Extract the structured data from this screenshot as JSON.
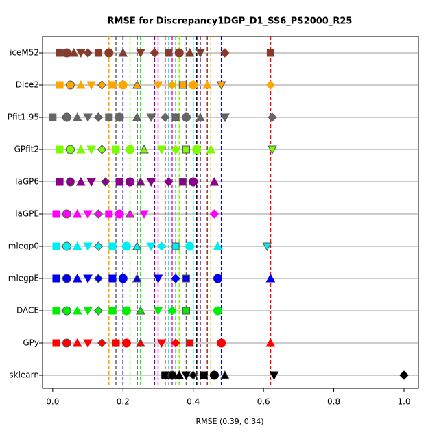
{
  "chart_data": {
    "type": "strip",
    "title": "RMSE for Discrepancy1DGP_D1_SS6_PS2000_R25",
    "x_label": "RMSE (0.39, 0.34)",
    "xlim": [
      -0.029,
      1.041
    ],
    "xticks": [
      {
        "value": 0,
        "label": "0.0"
      },
      {
        "value": 0.2,
        "label": "0.2"
      },
      {
        "value": 0.4,
        "label": "0.4"
      },
      {
        "value": 0.6,
        "label": "0.6"
      },
      {
        "value": 0.8,
        "label": "0.8"
      },
      {
        "value": 1,
        "label": "1.0"
      }
    ],
    "grid": true,
    "series": [
      {
        "name": "iceM52",
        "color": "#8b3a2a",
        "values": [
          0.02,
          0.04,
          0.06,
          0.08,
          0.1,
          0.13,
          0.16,
          0.2,
          0.25,
          0.29,
          0.33,
          0.36,
          0.39,
          0.42,
          0.49,
          0.62
        ],
        "lines": [
          0.2,
          0.44,
          0.62
        ]
      },
      {
        "name": "Dice2",
        "color": "#ffa500",
        "values": [
          0.02,
          0.05,
          0.08,
          0.11,
          0.14,
          0.17,
          0.2,
          0.24,
          0.3,
          0.34,
          0.37,
          0.4,
          0.44,
          0.48,
          0.62
        ],
        "lines": [
          0.16,
          0.45
        ]
      },
      {
        "name": "Pfit1.95",
        "color": "#666666",
        "values": [
          0.0,
          0.04,
          0.07,
          0.1,
          0.13,
          0.16,
          0.19,
          0.24,
          0.28,
          0.32,
          0.35,
          0.38,
          0.42,
          0.49,
          0.625
        ],
        "lines": [
          0.18,
          0.38
        ]
      },
      {
        "name": "GPfit2",
        "color": "#7cfc00",
        "values": [
          0.02,
          0.05,
          0.08,
          0.11,
          0.14,
          0.18,
          0.22,
          0.26,
          0.31,
          0.35,
          0.38,
          0.41,
          0.45,
          0.625
        ],
        "lines": [
          0.22,
          0.36
        ]
      },
      {
        "name": "laGP6",
        "color": "#8b008b",
        "values": [
          0.02,
          0.05,
          0.08,
          0.11,
          0.15,
          0.19,
          0.22,
          0.25,
          0.28,
          0.33,
          0.37,
          0.4,
          0.46
        ],
        "lines": [
          0.29,
          0.42
        ]
      },
      {
        "name": "laGPE",
        "color": "#ff00ff",
        "values": [
          0.01,
          0.04,
          0.07,
          0.1,
          0.13,
          0.16,
          0.19,
          0.22,
          0.26,
          0.46
        ],
        "lines": [
          0.3,
          0.34
        ]
      },
      {
        "name": "mlegp0",
        "color": "#00eeee",
        "values": [
          0.01,
          0.04,
          0.07,
          0.1,
          0.13,
          0.17,
          0.21,
          0.24,
          0.28,
          0.31,
          0.35,
          0.39,
          0.47,
          0.61
        ],
        "lines": [
          0.33,
          0.4
        ]
      },
      {
        "name": "mlegpE",
        "color": "#0000ee",
        "values": [
          0.01,
          0.04,
          0.07,
          0.1,
          0.13,
          0.17,
          0.2,
          0.24,
          0.3,
          0.35,
          0.38,
          0.47,
          0.62
        ],
        "lines": [
          0.2,
          0.48
        ]
      },
      {
        "name": "DACE",
        "color": "#00ee00",
        "values": [
          0.01,
          0.04,
          0.07,
          0.1,
          0.13,
          0.17,
          0.21,
          0.25,
          0.3,
          0.34,
          0.38,
          0.47
        ],
        "lines": [
          0.25,
          0.35
        ]
      },
      {
        "name": "GPy",
        "color": "#ff0000",
        "values": [
          0.01,
          0.04,
          0.07,
          0.1,
          0.14,
          0.18,
          0.21,
          0.25,
          0.31,
          0.35,
          0.39,
          0.48,
          0.62
        ],
        "lines": [
          0.32,
          0.62
        ]
      },
      {
        "name": "sklearn",
        "color": "#000000",
        "values": [
          0.32,
          0.34,
          0.36,
          0.38,
          0.4,
          0.43,
          0.46,
          0.49,
          0.63,
          1.0
        ],
        "lines": [
          0.24,
          0.41
        ]
      }
    ]
  }
}
